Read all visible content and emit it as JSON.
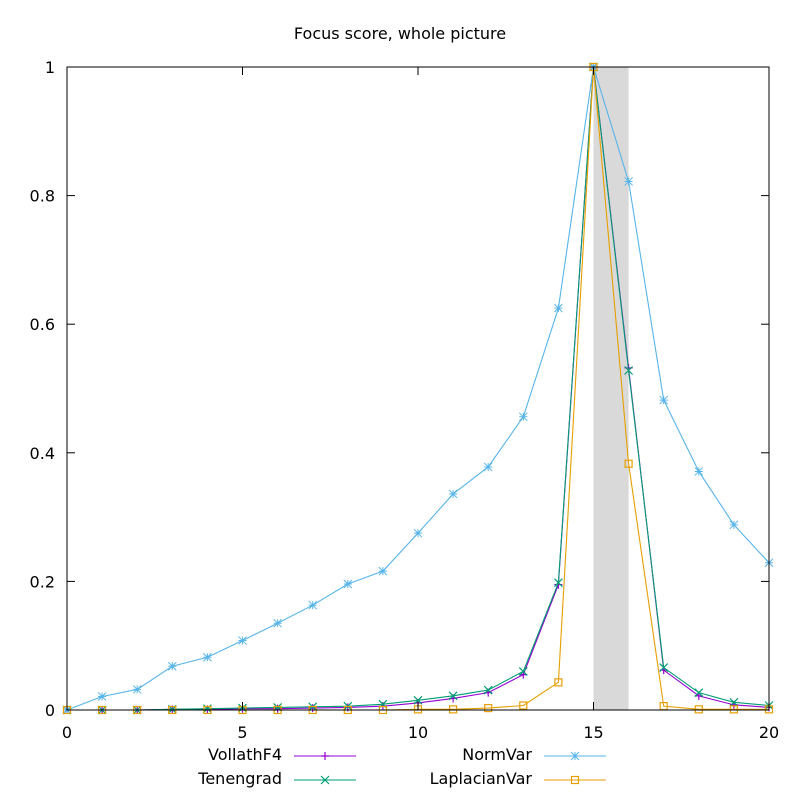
{
  "chart_data": {
    "type": "line",
    "title": "Focus score, whole picture",
    "xlabel": "",
    "ylabel": "",
    "xlim": [
      0,
      20
    ],
    "ylim": [
      0,
      1
    ],
    "x_ticks": [
      0,
      5,
      10,
      15,
      20
    ],
    "y_ticks": [
      0,
      0.2,
      0.4,
      0.6,
      0.8,
      1
    ],
    "y_tick_labels": [
      "0",
      "0.2",
      "0.4",
      "0.6",
      "0.8",
      "1"
    ],
    "grid": false,
    "legend_position": "bottom",
    "highlight_band": {
      "x_start": 15,
      "x_end": 16,
      "color": "#d9d9d9"
    },
    "x": [
      0,
      1,
      2,
      3,
      4,
      5,
      6,
      7,
      8,
      9,
      10,
      11,
      12,
      13,
      14,
      15,
      16,
      17,
      18,
      19,
      20
    ],
    "series": [
      {
        "name": "VollathF4",
        "color": "#9400d3",
        "marker": "plus",
        "values": [
          0,
          0,
          0,
          0.001,
          0.001,
          0.002,
          0.002,
          0.003,
          0.004,
          0.006,
          0.011,
          0.018,
          0.027,
          0.055,
          0.195,
          1.0,
          0.532,
          0.062,
          0.022,
          0.008,
          0.004
        ]
      },
      {
        "name": "Tenengrad",
        "color": "#009e73",
        "marker": "cross",
        "values": [
          0,
          0,
          0,
          0.001,
          0.002,
          0.003,
          0.004,
          0.005,
          0.006,
          0.009,
          0.015,
          0.022,
          0.031,
          0.06,
          0.198,
          1.0,
          0.528,
          0.066,
          0.027,
          0.012,
          0.007
        ]
      },
      {
        "name": "NormVar",
        "color": "#56b4e9",
        "marker": "star",
        "values": [
          0,
          0.021,
          0.032,
          0.068,
          0.082,
          0.108,
          0.135,
          0.163,
          0.196,
          0.216,
          0.275,
          0.336,
          0.378,
          0.456,
          0.625,
          1.0,
          0.822,
          0.482,
          0.371,
          0.288,
          0.229
        ]
      },
      {
        "name": "LaplacianVar",
        "color": "#e69f00",
        "marker": "square",
        "values": [
          0,
          0,
          0,
          0,
          0,
          0,
          0,
          0,
          0,
          0,
          0.001,
          0.001,
          0.003,
          0.007,
          0.043,
          1.0,
          0.383,
          0.006,
          0.001,
          0.001,
          0.001
        ]
      }
    ]
  }
}
